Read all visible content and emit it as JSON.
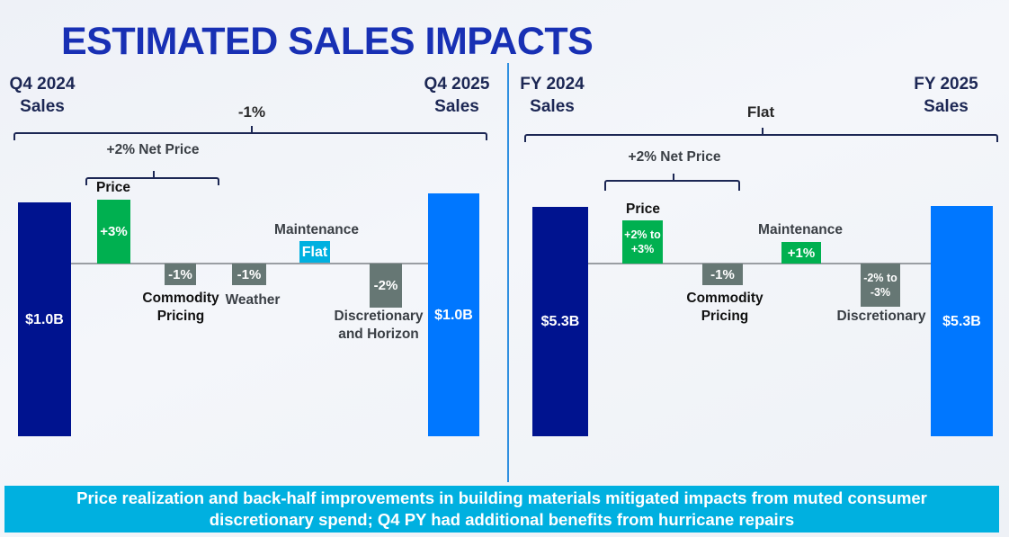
{
  "title": "ESTIMATED SALES IMPACTS",
  "banner": {
    "line1": "Price realization and back-half improvements in building materials mitigated impacts from muted consumer",
    "line2": "discretionary spend; Q4 PY had additional benefits from hurricane repairs"
  },
  "colors": {
    "start_bar": "#00138f",
    "end_bar": "#0077ff",
    "positive": "#00b050",
    "negative": "#667774",
    "flat": "#00b0e0",
    "title": "#1830b4"
  },
  "chart_data": [
    {
      "type": "waterfall",
      "start": {
        "label_line1": "Q4 2024",
        "label_line2": "Sales",
        "value": "$1.0B"
      },
      "end": {
        "label_line1": "Q4 2025",
        "label_line2": "Sales",
        "value": "$1.0B"
      },
      "total_change": "-1%",
      "net_price": "+2% Net Price",
      "steps": [
        {
          "label": "Price",
          "label2": "",
          "value": "+3%",
          "pct": 3
        },
        {
          "label": "Commodity",
          "label2": "Pricing",
          "value": "-1%",
          "pct": -1
        },
        {
          "label": "Weather",
          "label2": "",
          "value": "-1%",
          "pct": -1
        },
        {
          "label": "Maintenance",
          "label2": "",
          "value": "Flat",
          "pct": 0
        },
        {
          "label": "Discretionary",
          "label2": "and Horizon",
          "value": "-2%",
          "pct": -2
        }
      ]
    },
    {
      "type": "waterfall",
      "start": {
        "label_line1": "FY 2024",
        "label_line2": "Sales",
        "value": "$5.3B"
      },
      "end": {
        "label_line1": "FY 2025",
        "label_line2": "Sales",
        "value": "$5.3B"
      },
      "total_change": "Flat",
      "net_price": "+2% Net Price",
      "steps": [
        {
          "label": "Price",
          "label2": "",
          "value_line1": "+2% to",
          "value_line2": "+3%",
          "pct": 2.5
        },
        {
          "label": "Commodity",
          "label2": "Pricing",
          "value": "-1%",
          "pct": -1
        },
        {
          "label": "Maintenance",
          "label2": "",
          "value": "+1%",
          "pct": 1
        },
        {
          "label": "Discretionary",
          "label2": "",
          "value_line1": "-2% to",
          "value_line2": "-3%",
          "pct": -2.5
        }
      ]
    }
  ]
}
